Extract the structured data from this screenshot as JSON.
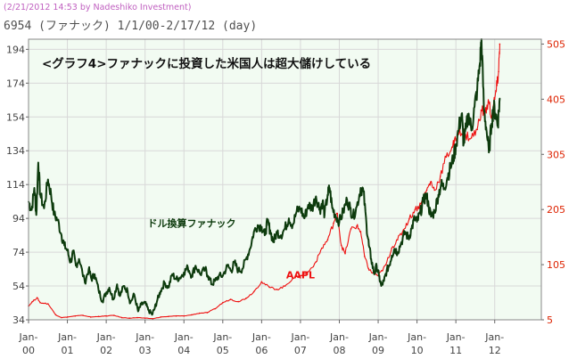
{
  "header": {
    "credit": "(2/21/2012 14:53 by Nadeshiko Investment)",
    "title": "6954 (ファナック) 1/1/00-2/17/12 (day)"
  },
  "colors": {
    "fanuc": "#0d3b0d",
    "aapl": "#ee1111",
    "plot_bg": "#f2fbf2",
    "grid": "#d8d8d8",
    "left_axis_text": "#444444",
    "right_axis_text": "#dd2200",
    "credit": "#c060c0"
  },
  "chart_data": {
    "type": "line",
    "title": "<グラフ4>ファナックに投資した米国人は超大儲けしている",
    "x_domain": [
      2000.0,
      2013.2
    ],
    "x_ticks": [
      {
        "v": 2000,
        "top": "Jan-",
        "bottom": "00"
      },
      {
        "v": 2001,
        "top": "Jan-",
        "bottom": "01"
      },
      {
        "v": 2002,
        "top": "Jan-",
        "bottom": "02"
      },
      {
        "v": 2003,
        "top": "Jan-",
        "bottom": "03"
      },
      {
        "v": 2004,
        "top": "Jan-",
        "bottom": "04"
      },
      {
        "v": 2005,
        "top": "Jan-",
        "bottom": "05"
      },
      {
        "v": 2006,
        "top": "Jan-",
        "bottom": "06"
      },
      {
        "v": 2007,
        "top": "Jan-",
        "bottom": "07"
      },
      {
        "v": 2008,
        "top": "Jan-",
        "bottom": "08"
      },
      {
        "v": 2009,
        "top": "Jan-",
        "bottom": "09"
      },
      {
        "v": 2010,
        "top": "Jan-",
        "bottom": "10"
      },
      {
        "v": 2011,
        "top": "Jan-",
        "bottom": "11"
      },
      {
        "v": 2012,
        "top": "Jan-",
        "bottom": "12"
      }
    ],
    "y_left": {
      "min": 34,
      "max": 200,
      "ticks": [
        34,
        54,
        74,
        94,
        114,
        134,
        154,
        174,
        194
      ]
    },
    "y_right": {
      "min": 5,
      "max": 513.8,
      "ticks": [
        5,
        105,
        205,
        305,
        405,
        505
      ]
    },
    "grid": true,
    "series": [
      {
        "name": "ドル換算ファナック",
        "axis": "left",
        "points": [
          [
            2000.0,
            104
          ],
          [
            2000.08,
            99
          ],
          [
            2000.15,
            112
          ],
          [
            2000.2,
            96
          ],
          [
            2000.25,
            127
          ],
          [
            2000.3,
            108
          ],
          [
            2000.4,
            100
          ],
          [
            2000.5,
            117
          ],
          [
            2000.58,
            108
          ],
          [
            2000.66,
            96
          ],
          [
            2000.75,
            93
          ],
          [
            2000.85,
            84
          ],
          [
            2000.92,
            78
          ],
          [
            2001.0,
            75
          ],
          [
            2001.08,
            68
          ],
          [
            2001.15,
            74
          ],
          [
            2001.22,
            66
          ],
          [
            2001.3,
            70
          ],
          [
            2001.45,
            56
          ],
          [
            2001.55,
            64
          ],
          [
            2001.62,
            58
          ],
          [
            2001.7,
            61
          ],
          [
            2001.8,
            52
          ],
          [
            2001.9,
            45
          ],
          [
            2002.0,
            50
          ],
          [
            2002.08,
            53
          ],
          [
            2002.18,
            46
          ],
          [
            2002.28,
            55
          ],
          [
            2002.35,
            48
          ],
          [
            2002.45,
            54
          ],
          [
            2002.55,
            51
          ],
          [
            2002.62,
            44
          ],
          [
            2002.72,
            49
          ],
          [
            2002.82,
            39
          ],
          [
            2002.9,
            43
          ],
          [
            2003.0,
            44
          ],
          [
            2003.08,
            40
          ],
          [
            2003.18,
            37
          ],
          [
            2003.25,
            41
          ],
          [
            2003.32,
            46
          ],
          [
            2003.4,
            51
          ],
          [
            2003.5,
            56
          ],
          [
            2003.6,
            53
          ],
          [
            2003.7,
            61
          ],
          [
            2003.8,
            58
          ],
          [
            2003.9,
            59
          ],
          [
            2004.0,
            62
          ],
          [
            2004.1,
            65
          ],
          [
            2004.2,
            60
          ],
          [
            2004.3,
            66
          ],
          [
            2004.42,
            61
          ],
          [
            2004.55,
            64
          ],
          [
            2004.62,
            60
          ],
          [
            2004.72,
            55
          ],
          [
            2004.8,
            57
          ],
          [
            2004.9,
            60
          ],
          [
            2005.0,
            60
          ],
          [
            2005.12,
            66
          ],
          [
            2005.22,
            63
          ],
          [
            2005.3,
            68
          ],
          [
            2005.4,
            63
          ],
          [
            2005.5,
            64
          ],
          [
            2005.6,
            70
          ],
          [
            2005.7,
            76
          ],
          [
            2005.8,
            86
          ],
          [
            2005.9,
            90
          ],
          [
            2006.0,
            89
          ],
          [
            2006.08,
            84
          ],
          [
            2006.15,
            92
          ],
          [
            2006.22,
            87
          ],
          [
            2006.3,
            80
          ],
          [
            2006.4,
            86
          ],
          [
            2006.5,
            84
          ],
          [
            2006.6,
            88
          ],
          [
            2006.7,
            94
          ],
          [
            2006.8,
            90
          ],
          [
            2006.9,
            98
          ],
          [
            2007.0,
            100
          ],
          [
            2007.1,
            94
          ],
          [
            2007.2,
            102
          ],
          [
            2007.3,
            100
          ],
          [
            2007.4,
            107
          ],
          [
            2007.5,
            99
          ],
          [
            2007.57,
            104
          ],
          [
            2007.62,
            96
          ],
          [
            2007.7,
            108
          ],
          [
            2007.75,
            112
          ],
          [
            2007.82,
            100
          ],
          [
            2007.9,
            96
          ],
          [
            2008.0,
            92
          ],
          [
            2008.1,
            98
          ],
          [
            2008.2,
            105
          ],
          [
            2008.28,
            100
          ],
          [
            2008.35,
            95
          ],
          [
            2008.45,
            101
          ],
          [
            2008.55,
            112
          ],
          [
            2008.62,
            110
          ],
          [
            2008.7,
            90
          ],
          [
            2008.76,
            78
          ],
          [
            2008.82,
            70
          ],
          [
            2008.9,
            61
          ],
          [
            2008.96,
            66
          ],
          [
            2009.02,
            60
          ],
          [
            2009.08,
            54
          ],
          [
            2009.15,
            57
          ],
          [
            2009.22,
            63
          ],
          [
            2009.28,
            66
          ],
          [
            2009.35,
            72
          ],
          [
            2009.42,
            76
          ],
          [
            2009.5,
            74
          ],
          [
            2009.6,
            80
          ],
          [
            2009.7,
            86
          ],
          [
            2009.78,
            82
          ],
          [
            2009.86,
            88
          ],
          [
            2009.94,
            94
          ],
          [
            2010.0,
            92
          ],
          [
            2010.08,
            97
          ],
          [
            2010.16,
            104
          ],
          [
            2010.24,
            108
          ],
          [
            2010.3,
            101
          ],
          [
            2010.36,
            95
          ],
          [
            2010.45,
            98
          ],
          [
            2010.55,
            108
          ],
          [
            2010.62,
            114
          ],
          [
            2010.7,
            112
          ],
          [
            2010.78,
            118
          ],
          [
            2010.86,
            124
          ],
          [
            2010.94,
            130
          ],
          [
            2011.0,
            137
          ],
          [
            2011.08,
            148
          ],
          [
            2011.15,
            156
          ],
          [
            2011.2,
            138
          ],
          [
            2011.26,
            147
          ],
          [
            2011.33,
            156
          ],
          [
            2011.4,
            146
          ],
          [
            2011.48,
            160
          ],
          [
            2011.55,
            170
          ],
          [
            2011.62,
            186
          ],
          [
            2011.66,
            200
          ],
          [
            2011.72,
            160
          ],
          [
            2011.78,
            148
          ],
          [
            2011.85,
            133
          ],
          [
            2011.92,
            150
          ],
          [
            2011.97,
            160
          ],
          [
            2012.02,
            156
          ],
          [
            2012.08,
            150
          ],
          [
            2012.13,
            165
          ]
        ]
      },
      {
        "name": "AAPL",
        "axis": "right",
        "points": [
          [
            2000.0,
            30
          ],
          [
            2000.1,
            38
          ],
          [
            2000.22,
            45
          ],
          [
            2000.3,
            36
          ],
          [
            2000.5,
            34
          ],
          [
            2000.7,
            14
          ],
          [
            2000.85,
            9
          ],
          [
            2001.0,
            10
          ],
          [
            2001.2,
            12
          ],
          [
            2001.4,
            13
          ],
          [
            2001.6,
            10
          ],
          [
            2001.8,
            11
          ],
          [
            2002.0,
            12
          ],
          [
            2002.2,
            13
          ],
          [
            2002.4,
            9
          ],
          [
            2002.6,
            8
          ],
          [
            2002.8,
            9
          ],
          [
            2003.0,
            8
          ],
          [
            2003.2,
            7
          ],
          [
            2003.4,
            10
          ],
          [
            2003.6,
            11
          ],
          [
            2003.8,
            12
          ],
          [
            2004.0,
            12
          ],
          [
            2004.2,
            14
          ],
          [
            2004.4,
            17
          ],
          [
            2004.6,
            18
          ],
          [
            2004.8,
            25
          ],
          [
            2005.0,
            36
          ],
          [
            2005.2,
            42
          ],
          [
            2005.4,
            38
          ],
          [
            2005.6,
            44
          ],
          [
            2005.8,
            56
          ],
          [
            2006.0,
            74
          ],
          [
            2006.2,
            64
          ],
          [
            2006.4,
            60
          ],
          [
            2006.6,
            66
          ],
          [
            2006.8,
            80
          ],
          [
            2007.0,
            85
          ],
          [
            2007.2,
            92
          ],
          [
            2007.4,
            110
          ],
          [
            2007.55,
            135
          ],
          [
            2007.7,
            150
          ],
          [
            2007.85,
            180
          ],
          [
            2007.95,
            198
          ],
          [
            2008.05,
            140
          ],
          [
            2008.15,
            125
          ],
          [
            2008.3,
            170
          ],
          [
            2008.45,
            175
          ],
          [
            2008.55,
            165
          ],
          [
            2008.65,
            120
          ],
          [
            2008.75,
            98
          ],
          [
            2008.85,
            90
          ],
          [
            2009.0,
            85
          ],
          [
            2009.1,
            94
          ],
          [
            2009.2,
            105
          ],
          [
            2009.35,
            135
          ],
          [
            2009.5,
            150
          ],
          [
            2009.65,
            168
          ],
          [
            2009.8,
            188
          ],
          [
            2009.95,
            205
          ],
          [
            2010.1,
            215
          ],
          [
            2010.25,
            240
          ],
          [
            2010.35,
            255
          ],
          [
            2010.45,
            240
          ],
          [
            2010.6,
            265
          ],
          [
            2010.75,
            300
          ],
          [
            2010.9,
            318
          ],
          [
            2011.0,
            330
          ],
          [
            2011.1,
            350
          ],
          [
            2011.25,
            340
          ],
          [
            2011.4,
            335
          ],
          [
            2011.55,
            350
          ],
          [
            2011.65,
            385
          ],
          [
            2011.75,
            380
          ],
          [
            2011.85,
            400
          ],
          [
            2011.92,
            372
          ],
          [
            2012.0,
            405
          ],
          [
            2012.06,
            430
          ],
          [
            2012.1,
            455
          ],
          [
            2012.13,
            505
          ]
        ]
      }
    ],
    "annotations": [
      {
        "text": "ドル換算ファナック",
        "series": 0,
        "x": 2004.2,
        "y": 89
      },
      {
        "text": "AAPL",
        "series": 1,
        "x": 2007.0,
        "y": 80
      }
    ]
  }
}
